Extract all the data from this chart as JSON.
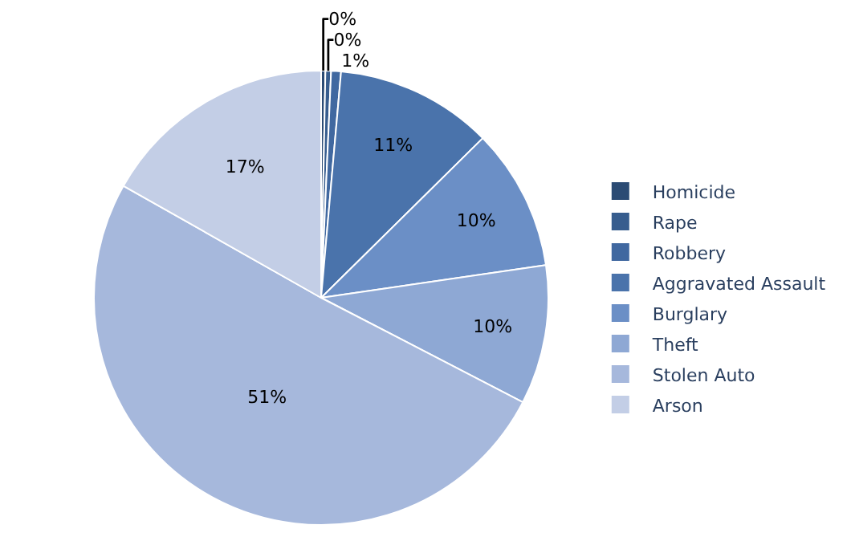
{
  "chart_data": {
    "type": "pie",
    "categories": [
      "Homicide",
      "Rape",
      "Robbery",
      "Aggravated Assault",
      "Burglary",
      "Theft",
      "Stolen Auto",
      "Arson"
    ],
    "values": [
      0.3,
      0.4,
      0.7,
      11.2,
      10.1,
      9.9,
      50.6,
      16.8
    ],
    "value_labels": [
      "0%",
      "0%",
      "1%",
      "11%",
      "10%",
      "10%",
      "51%",
      "17%"
    ],
    "colors": [
      "#2b4b74",
      "#375d8e",
      "#4068a0",
      "#4a73ab",
      "#6b8fc6",
      "#8ea8d4",
      "#a6b8dc",
      "#c3cee6"
    ],
    "legend": "right"
  }
}
